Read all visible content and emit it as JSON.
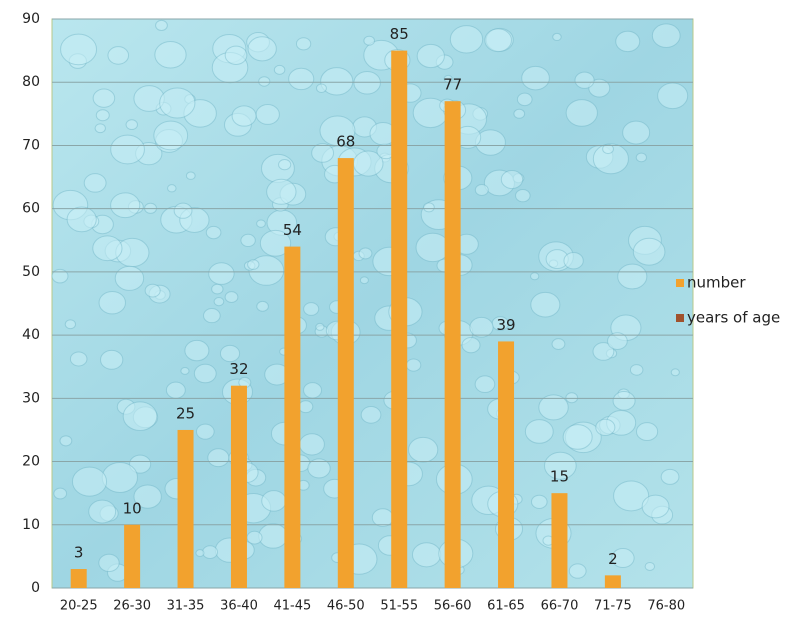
{
  "chart_data": {
    "type": "bar",
    "categories": [
      "20-25",
      "26-30",
      "31-35",
      "36-40",
      "41-45",
      "46-50",
      "51-55",
      "56-60",
      "61-65",
      "66-70",
      "71-75",
      "76-80"
    ],
    "series": [
      {
        "name": "number",
        "color": "#f2a22e",
        "values": [
          3,
          10,
          25,
          32,
          54,
          68,
          85,
          77,
          39,
          15,
          2,
          null
        ]
      },
      {
        "name": "years of age",
        "color": "#a0522d",
        "values": [
          null,
          null,
          null,
          null,
          null,
          null,
          null,
          null,
          null,
          null,
          null,
          null
        ]
      }
    ],
    "ylim": [
      0,
      90
    ],
    "yticks": [
      0,
      10,
      20,
      30,
      40,
      50,
      60,
      70,
      80,
      90
    ],
    "grid": true,
    "legend": "right"
  }
}
